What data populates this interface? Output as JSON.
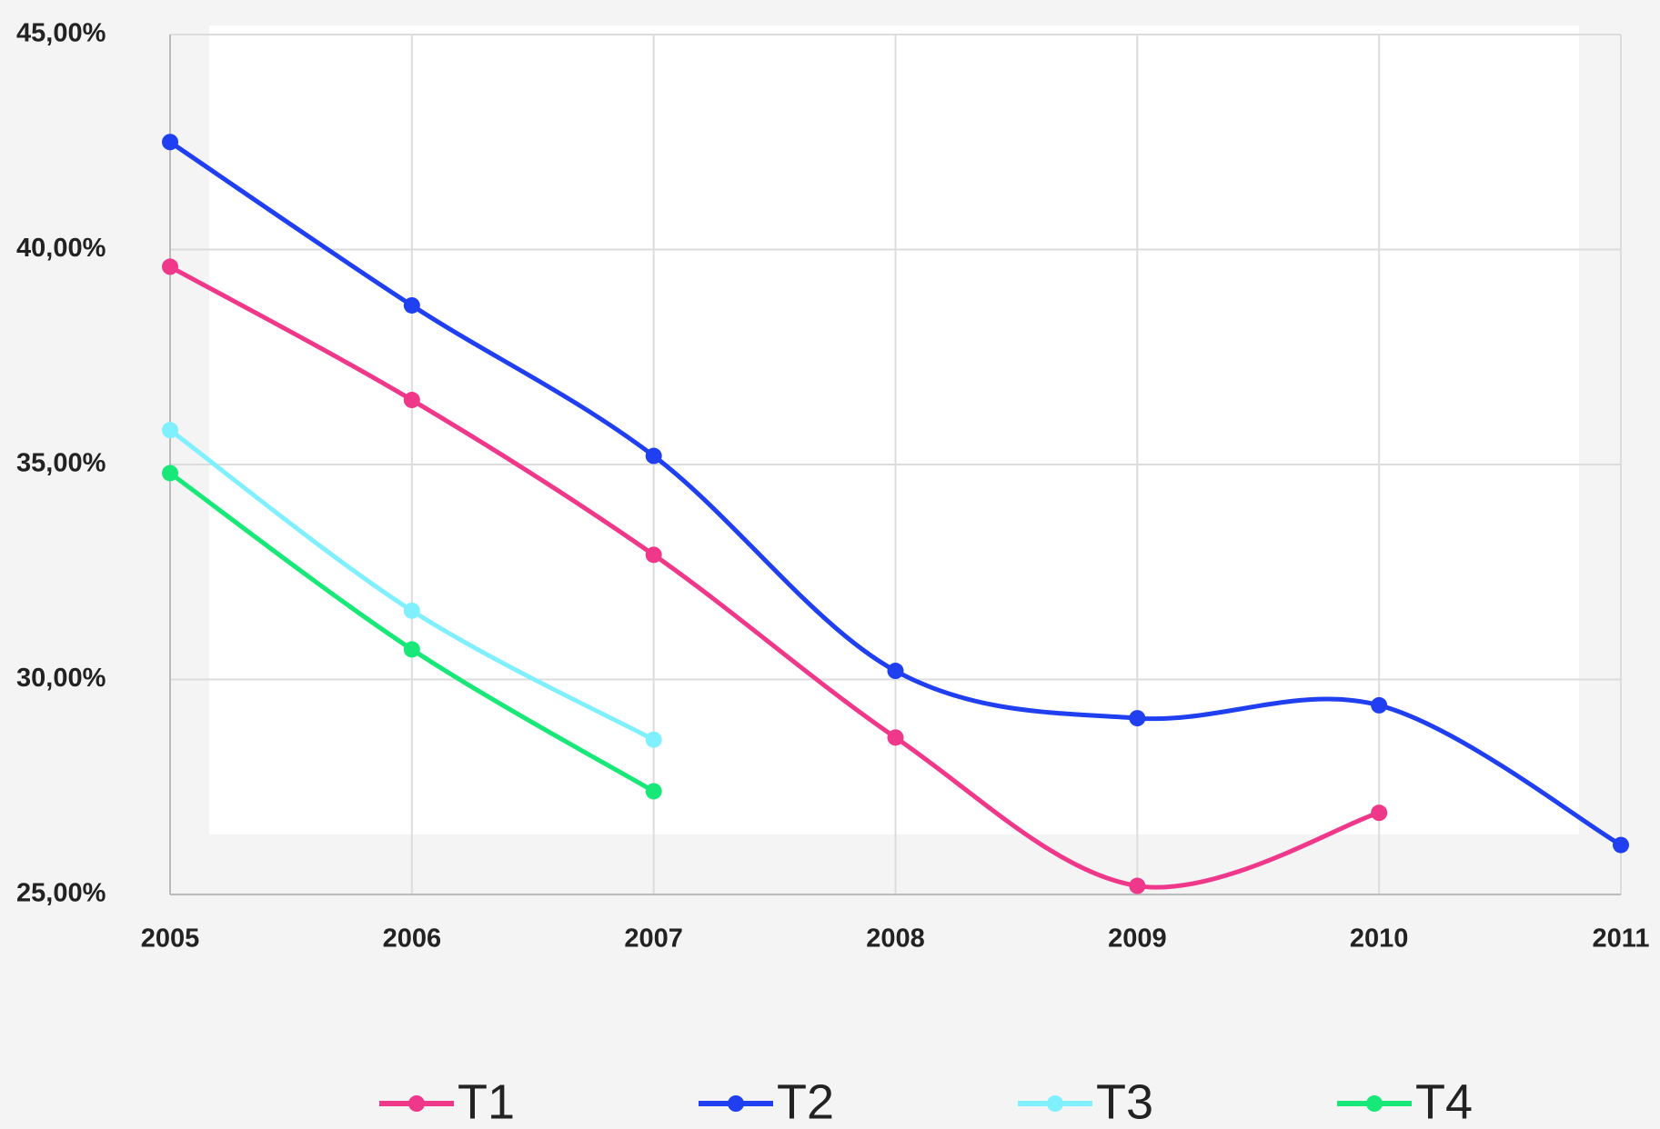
{
  "chart_data": {
    "type": "line",
    "categories": [
      "2005",
      "2006",
      "2007",
      "2008",
      "2009",
      "2010",
      "2011"
    ],
    "ylim": [
      25,
      45
    ],
    "yticks": [
      {
        "value": 25,
        "label": "25,00%"
      },
      {
        "value": 30,
        "label": "30,00%"
      },
      {
        "value": 35,
        "label": "35,00%"
      },
      {
        "value": 40,
        "label": "40,00%"
      },
      {
        "value": 45,
        "label": "45,00%"
      }
    ],
    "grid": true,
    "smooth": true,
    "legend": "bottom",
    "series": [
      {
        "name": "T1",
        "color": "#f0388a",
        "values": [
          39.6,
          36.5,
          32.9,
          28.65,
          25.2,
          26.9,
          null
        ]
      },
      {
        "name": "T2",
        "color": "#1f3ff0",
        "values": [
          42.5,
          38.7,
          35.2,
          30.2,
          29.1,
          29.4,
          26.15
        ]
      },
      {
        "name": "T3",
        "color": "#80f0ff",
        "values": [
          35.8,
          31.6,
          28.6,
          null,
          null,
          null,
          null
        ]
      },
      {
        "name": "T4",
        "color": "#18e878",
        "values": [
          34.8,
          30.7,
          27.4,
          null,
          null,
          null,
          null
        ]
      }
    ]
  }
}
